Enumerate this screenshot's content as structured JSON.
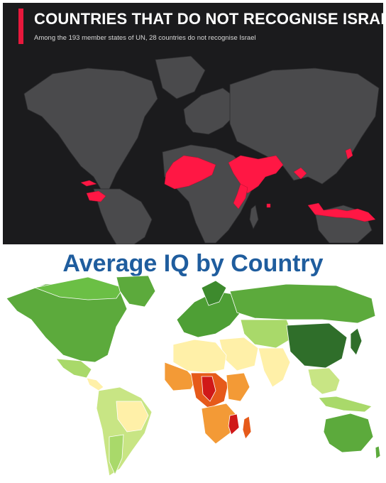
{
  "top_panel": {
    "title": "COUNTRIES THAT DO NOT RECOGNISE ISRAEL",
    "subtitle": "Among the 193 member states of UN, 28 countries do not recognise Israel",
    "colors": {
      "background": "#1b1b1d",
      "land": "#4a4a4c",
      "highlight": "#ff1744",
      "accent": "#e8183c"
    }
  },
  "bottom_panel": {
    "title": "Average IQ by Country",
    "colors": {
      "title": "#1f5d9e",
      "dark_green": "#2f6e2a",
      "green": "#5caa3c",
      "light_green": "#a9d96a",
      "pale_yellow": "#fff0a8",
      "orange": "#f39a36",
      "dark_orange": "#e65a1a",
      "red": "#d01818"
    }
  }
}
